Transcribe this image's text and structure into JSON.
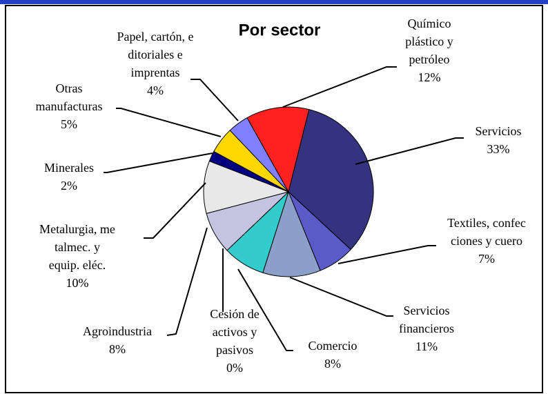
{
  "chart_data": {
    "type": "pie",
    "title": "Por sector",
    "categories": [
      [
        "Servicios"
      ],
      [
        "Textiles, confec",
        "ciones y cuero"
      ],
      [
        "Servicios",
        "financieros"
      ],
      [
        "Comercio"
      ],
      [
        "Cesión de",
        "activos y",
        "pasivos"
      ],
      [
        "Agroindustria"
      ],
      [
        "Metalurgia, me",
        "talmec. y",
        "equip. eléc."
      ],
      [
        "Minerales"
      ],
      [
        "Otras",
        "manufacturas"
      ],
      [
        "Papel, cartón, e",
        "ditoriales e",
        "imprentas"
      ],
      [
        "Químico",
        "plástico y",
        "petróleo"
      ]
    ],
    "values": [
      33,
      7,
      11,
      8,
      0,
      8,
      10,
      2,
      5,
      4,
      12
    ],
    "value_labels": [
      "33%",
      "7%",
      "11%",
      "8%",
      "0%",
      "8%",
      "10%",
      "2%",
      "5%",
      "4%",
      "12%"
    ],
    "colors": [
      "#333380",
      "#5a5ac8",
      "#8aa0c8",
      "#33cccc",
      "#99cccc",
      "#c4c4e0",
      "#e8e8e8",
      "#000080",
      "#ffd700",
      "#8080ff",
      "#ff2020"
    ]
  }
}
